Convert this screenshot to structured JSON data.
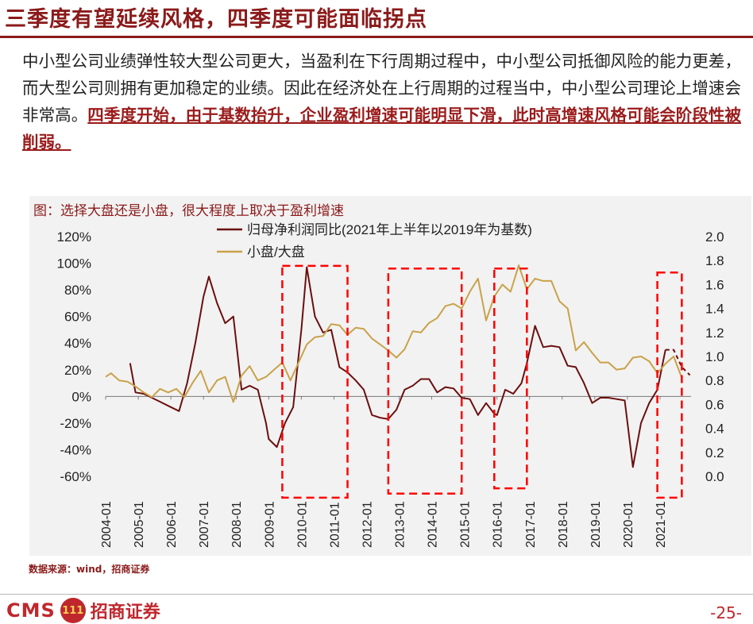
{
  "page": {
    "title": "三季度有望延续风格，四季度可能面临拐点",
    "body_plain": "中小型公司业绩弹性较大型公司更大，当盈利在下行周期过程中，中小型公司抵御风险的能力更差，而大型公司则拥有更加稳定的业绩。因此在经济处在上行周期的过程当中，中小型公司理论上增速会非常高。",
    "body_highlight": "四季度开始，由于基数抬升，企业盈利增速可能明显下滑，此时高增速风格可能会阶段性被削弱。",
    "chart_title": "图：选择大盘还是小盘，很大程度上取决于盈利增速",
    "source": "数据来源：wind，招商证券",
    "page_number": "-25-",
    "logo_text": "CMS",
    "logo_badge": "111",
    "logo_name": "招商证券"
  },
  "colors": {
    "title": "#8b1a1a",
    "earnings_line": "#6b0f0f",
    "ratio_line": "#c9a24a",
    "highlight_box": "#ff0000",
    "panel_bg": "#f2f2f2"
  },
  "chart_data": {
    "type": "line",
    "title": "图：选择大盘还是小盘，很大程度上取决于盈利增速",
    "grid": false,
    "legend_position": "top",
    "x_ticks": [
      "2004-01",
      "2005-01",
      "2006-01",
      "2007-01",
      "2008-01",
      "2009-01",
      "2010-01",
      "2011-01",
      "2012-01",
      "2013-01",
      "2014-01",
      "2015-01",
      "2016-01",
      "2017-01",
      "2018-01",
      "2019-01",
      "2020-01",
      "2021-01"
    ],
    "y_left": {
      "ticks": [
        "120%",
        "100%",
        "80%",
        "60%",
        "40%",
        "20%",
        "0%",
        "-20%",
        "-40%",
        "-60%"
      ],
      "ylim": [
        -60,
        120
      ]
    },
    "y_right": {
      "ticks": [
        "2.0",
        "1.8",
        "1.6",
        "1.4",
        "1.2",
        "1.0",
        "0.8",
        "0.6",
        "0.4",
        "0.2",
        "0.0"
      ],
      "ylim": [
        0.0,
        2.0
      ]
    },
    "series": [
      {
        "name": "归母净利润同比(2021年上半年以2019年为基数)",
        "axis": "left",
        "style": "solid",
        "points": [
          [
            "2004-10",
            25
          ],
          [
            "2004-12",
            3
          ],
          [
            "2005-03",
            2
          ],
          [
            "2005-06",
            -1
          ],
          [
            "2005-09",
            -4
          ],
          [
            "2006-01",
            -8
          ],
          [
            "2006-04",
            -11
          ],
          [
            "2006-07",
            10
          ],
          [
            "2006-10",
            40
          ],
          [
            "2007-01",
            75
          ],
          [
            "2007-03",
            90
          ],
          [
            "2007-06",
            70
          ],
          [
            "2007-09",
            55
          ],
          [
            "2007-12",
            60
          ],
          [
            "2008-03",
            5
          ],
          [
            "2008-06",
            8
          ],
          [
            "2008-09",
            5
          ],
          [
            "2008-12",
            -20
          ],
          [
            "2009-01",
            -32
          ],
          [
            "2009-04",
            -38
          ],
          [
            "2009-07",
            -20
          ],
          [
            "2009-10",
            -8
          ],
          [
            "2010-01",
            50
          ],
          [
            "2010-03",
            97
          ],
          [
            "2010-06",
            60
          ],
          [
            "2010-09",
            48
          ],
          [
            "2010-12",
            50
          ],
          [
            "2011-03",
            22
          ],
          [
            "2011-06",
            18
          ],
          [
            "2011-09",
            12
          ],
          [
            "2011-12",
            5
          ],
          [
            "2012-03",
            -14
          ],
          [
            "2012-06",
            -16
          ],
          [
            "2012-09",
            -17
          ],
          [
            "2012-12",
            -10
          ],
          [
            "2013-03",
            5
          ],
          [
            "2013-06",
            8
          ],
          [
            "2013-09",
            13
          ],
          [
            "2013-12",
            13
          ],
          [
            "2014-03",
            3
          ],
          [
            "2014-06",
            7
          ],
          [
            "2014-09",
            6
          ],
          [
            "2014-12",
            -1
          ],
          [
            "2015-03",
            -2
          ],
          [
            "2015-06",
            -14
          ],
          [
            "2015-09",
            -5
          ],
          [
            "2015-12",
            -13
          ],
          [
            "2016-01",
            -14
          ],
          [
            "2016-04",
            5
          ],
          [
            "2016-07",
            2
          ],
          [
            "2016-10",
            10
          ],
          [
            "2016-12",
            25
          ],
          [
            "2017-03",
            53
          ],
          [
            "2017-06",
            37
          ],
          [
            "2017-09",
            38
          ],
          [
            "2017-12",
            37
          ],
          [
            "2018-03",
            23
          ],
          [
            "2018-06",
            22
          ],
          [
            "2018-09",
            10
          ],
          [
            "2018-12",
            -5
          ],
          [
            "2019-03",
            -1
          ],
          [
            "2019-06",
            -1
          ],
          [
            "2019-09",
            -2
          ],
          [
            "2019-12",
            -3
          ],
          [
            "2020-03",
            -53
          ],
          [
            "2020-06",
            -20
          ],
          [
            "2020-09",
            -5
          ],
          [
            "2020-12",
            5
          ],
          [
            "2021-03",
            35
          ]
        ]
      },
      {
        "name": "归母净利润同比(2021年上半年以2019年为基数)",
        "axis": "left",
        "style": "dashed",
        "points": [
          [
            "2021-03",
            35
          ],
          [
            "2021-06",
            35
          ],
          [
            "2021-09",
            22
          ],
          [
            "2021-12",
            16
          ]
        ]
      },
      {
        "name": "小盘/大盘",
        "axis": "right",
        "style": "solid",
        "points": [
          [
            "2004-01",
            0.83
          ],
          [
            "2004-03",
            0.86
          ],
          [
            "2004-06",
            0.8
          ],
          [
            "2004-09",
            0.79
          ],
          [
            "2004-12",
            0.75
          ],
          [
            "2005-03",
            0.7
          ],
          [
            "2005-06",
            0.66
          ],
          [
            "2005-09",
            0.73
          ],
          [
            "2005-12",
            0.7
          ],
          [
            "2006-03",
            0.73
          ],
          [
            "2006-06",
            0.66
          ],
          [
            "2006-09",
            0.78
          ],
          [
            "2006-12",
            0.88
          ],
          [
            "2007-03",
            0.7
          ],
          [
            "2007-06",
            0.8
          ],
          [
            "2007-09",
            0.83
          ],
          [
            "2007-12",
            0.62
          ],
          [
            "2008-03",
            0.84
          ],
          [
            "2008-06",
            0.92
          ],
          [
            "2008-09",
            0.8
          ],
          [
            "2008-12",
            0.83
          ],
          [
            "2009-03",
            0.89
          ],
          [
            "2009-06",
            0.95
          ],
          [
            "2009-09",
            0.8
          ],
          [
            "2009-12",
            0.95
          ],
          [
            "2010-03",
            1.1
          ],
          [
            "2010-06",
            1.16
          ],
          [
            "2010-09",
            1.17
          ],
          [
            "2010-12",
            1.27
          ],
          [
            "2011-03",
            1.26
          ],
          [
            "2011-06",
            1.18
          ],
          [
            "2011-09",
            1.24
          ],
          [
            "2011-12",
            1.23
          ],
          [
            "2012-03",
            1.15
          ],
          [
            "2012-06",
            1.1
          ],
          [
            "2012-09",
            1.05
          ],
          [
            "2012-12",
            0.99
          ],
          [
            "2013-03",
            1.06
          ],
          [
            "2013-06",
            1.21
          ],
          [
            "2013-09",
            1.2
          ],
          [
            "2013-12",
            1.28
          ],
          [
            "2014-03",
            1.32
          ],
          [
            "2014-06",
            1.42
          ],
          [
            "2014-09",
            1.44
          ],
          [
            "2014-12",
            1.4
          ],
          [
            "2015-03",
            1.54
          ],
          [
            "2015-06",
            1.65
          ],
          [
            "2015-09",
            1.3
          ],
          [
            "2015-12",
            1.5
          ],
          [
            "2016-03",
            1.6
          ],
          [
            "2016-06",
            1.54
          ],
          [
            "2016-09",
            1.76
          ],
          [
            "2016-12",
            1.56
          ],
          [
            "2017-03",
            1.65
          ],
          [
            "2017-06",
            1.63
          ],
          [
            "2017-09",
            1.63
          ],
          [
            "2017-12",
            1.46
          ],
          [
            "2018-03",
            1.4
          ],
          [
            "2018-06",
            1.05
          ],
          [
            "2018-09",
            1.12
          ],
          [
            "2018-12",
            1.03
          ],
          [
            "2019-03",
            0.95
          ],
          [
            "2019-06",
            0.95
          ],
          [
            "2019-09",
            0.89
          ],
          [
            "2019-12",
            0.9
          ],
          [
            "2020-03",
            0.99
          ],
          [
            "2020-06",
            1.0
          ],
          [
            "2020-09",
            0.96
          ],
          [
            "2020-12",
            0.86
          ],
          [
            "2021-03",
            0.94
          ],
          [
            "2021-06",
            1.0
          ],
          [
            "2021-09",
            0.82
          ]
        ]
      }
    ],
    "highlight_boxes": [
      {
        "from": "2009-06",
        "to": "2011-06",
        "axis": "left",
        "top": 98,
        "bottom": -76
      },
      {
        "from": "2012-09",
        "to": "2014-12",
        "axis": "left",
        "top": 96,
        "bottom": -73
      },
      {
        "from": "2015-12",
        "to": "2016-12",
        "axis": "left",
        "top": 96,
        "bottom": -69
      },
      {
        "from": "2020-12",
        "to": "2021-09",
        "axis": "left",
        "top": 93,
        "bottom": -76
      }
    ]
  }
}
